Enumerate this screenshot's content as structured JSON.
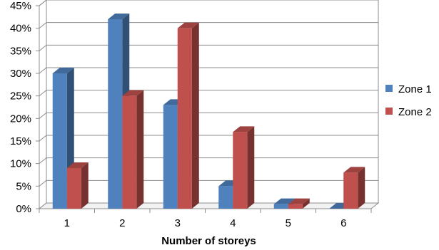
{
  "chart_data": {
    "type": "bar",
    "categories": [
      "1",
      "2",
      "3",
      "4",
      "5",
      "6"
    ],
    "series": [
      {
        "name": "Zone 1",
        "color": "#4F81BD",
        "values": [
          30,
          42,
          23,
          5,
          1,
          0
        ]
      },
      {
        "name": "Zone 2",
        "color": "#C0504D",
        "values": [
          9,
          25,
          40,
          17,
          1,
          8
        ]
      }
    ],
    "xlabel": "Number of storeys",
    "ylabel": "",
    "ylim": [
      0,
      45
    ],
    "yticks": [
      "0%",
      "5%",
      "10%",
      "15%",
      "20%",
      "25%",
      "30%",
      "35%",
      "40%",
      "45%"
    ],
    "grid": true,
    "legend": "right",
    "style": "3d-clustered"
  }
}
